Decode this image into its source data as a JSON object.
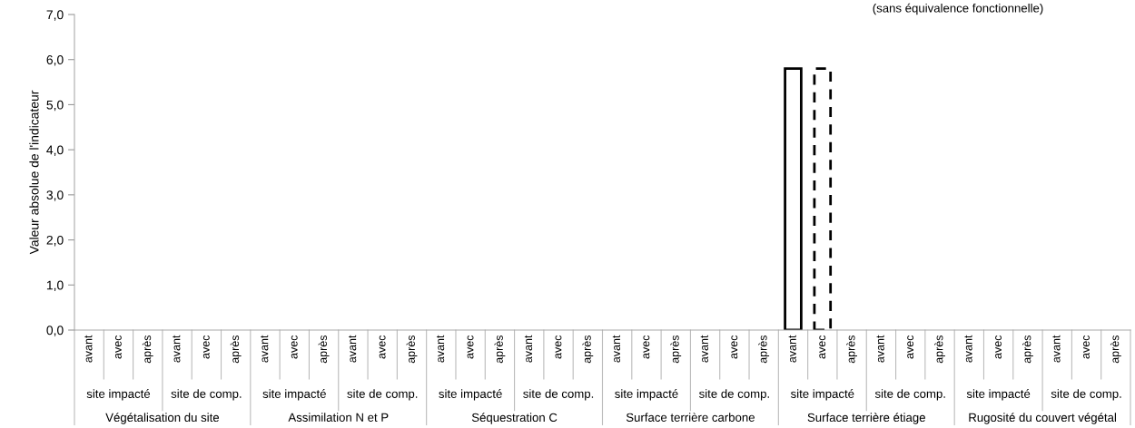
{
  "chart_data": {
    "type": "bar",
    "subtitle": "(sans équivalence fonctionnelle)",
    "ylabel": "Valeur absolue de l'indicateur",
    "categories": [
      "avant",
      "avec",
      "après",
      "avant",
      "avec",
      "après",
      "avant",
      "avec",
      "après",
      "avant",
      "avec",
      "après",
      "avant",
      "avec",
      "après",
      "avant",
      "avec",
      "après",
      "avant",
      "avec",
      "après",
      "avant",
      "avec",
      "après",
      "avant",
      "avec",
      "après",
      "avant",
      "avec",
      "après",
      "avant",
      "avec",
      "après",
      "avant",
      "avec",
      "après"
    ],
    "series": [
      {
        "color": "#000000",
        "line_style": "solid",
        "values": [
          null,
          null,
          null,
          null,
          null,
          null,
          null,
          null,
          null,
          null,
          null,
          null,
          null,
          null,
          null,
          null,
          null,
          null,
          null,
          null,
          null,
          null,
          null,
          null,
          5.8,
          null,
          null,
          null,
          null,
          null,
          null,
          null,
          null,
          null,
          null,
          null
        ]
      },
      {
        "color": "#000000",
        "line_style": "dashed",
        "values": [
          null,
          null,
          null,
          null,
          null,
          null,
          null,
          null,
          null,
          null,
          null,
          null,
          null,
          null,
          null,
          null,
          null,
          null,
          null,
          null,
          null,
          null,
          null,
          null,
          null,
          5.8,
          null,
          null,
          null,
          null,
          null,
          null,
          null,
          null,
          null,
          null
        ]
      }
    ],
    "ylim": [
      0,
      7
    ],
    "yticks": [
      {
        "value": 0,
        "label": "0,0"
      },
      {
        "value": 1,
        "label": "1,0"
      },
      {
        "value": 2,
        "label": "2,0"
      },
      {
        "value": 3,
        "label": "3,0"
      },
      {
        "value": 4,
        "label": "4,0"
      },
      {
        "value": 5,
        "label": "5,0"
      },
      {
        "value": 6,
        "label": "6,0"
      },
      {
        "value": 7,
        "label": "7,0"
      }
    ],
    "annotations": [
      "site impacté",
      "site de comp.",
      "site impacté",
      "site de comp.",
      "site impacté",
      "site de comp.",
      "site impacté",
      "site de comp.",
      "site impacté",
      "site de comp.",
      "site impacté",
      "site de comp.",
      "Végétalisation du site",
      "Assimilation N et P",
      "Séquestration C",
      "Surface terrière carbone",
      "Surface terrière étiage",
      "Rugosité du couvert végétal"
    ],
    "grid": false,
    "legend": false
  }
}
